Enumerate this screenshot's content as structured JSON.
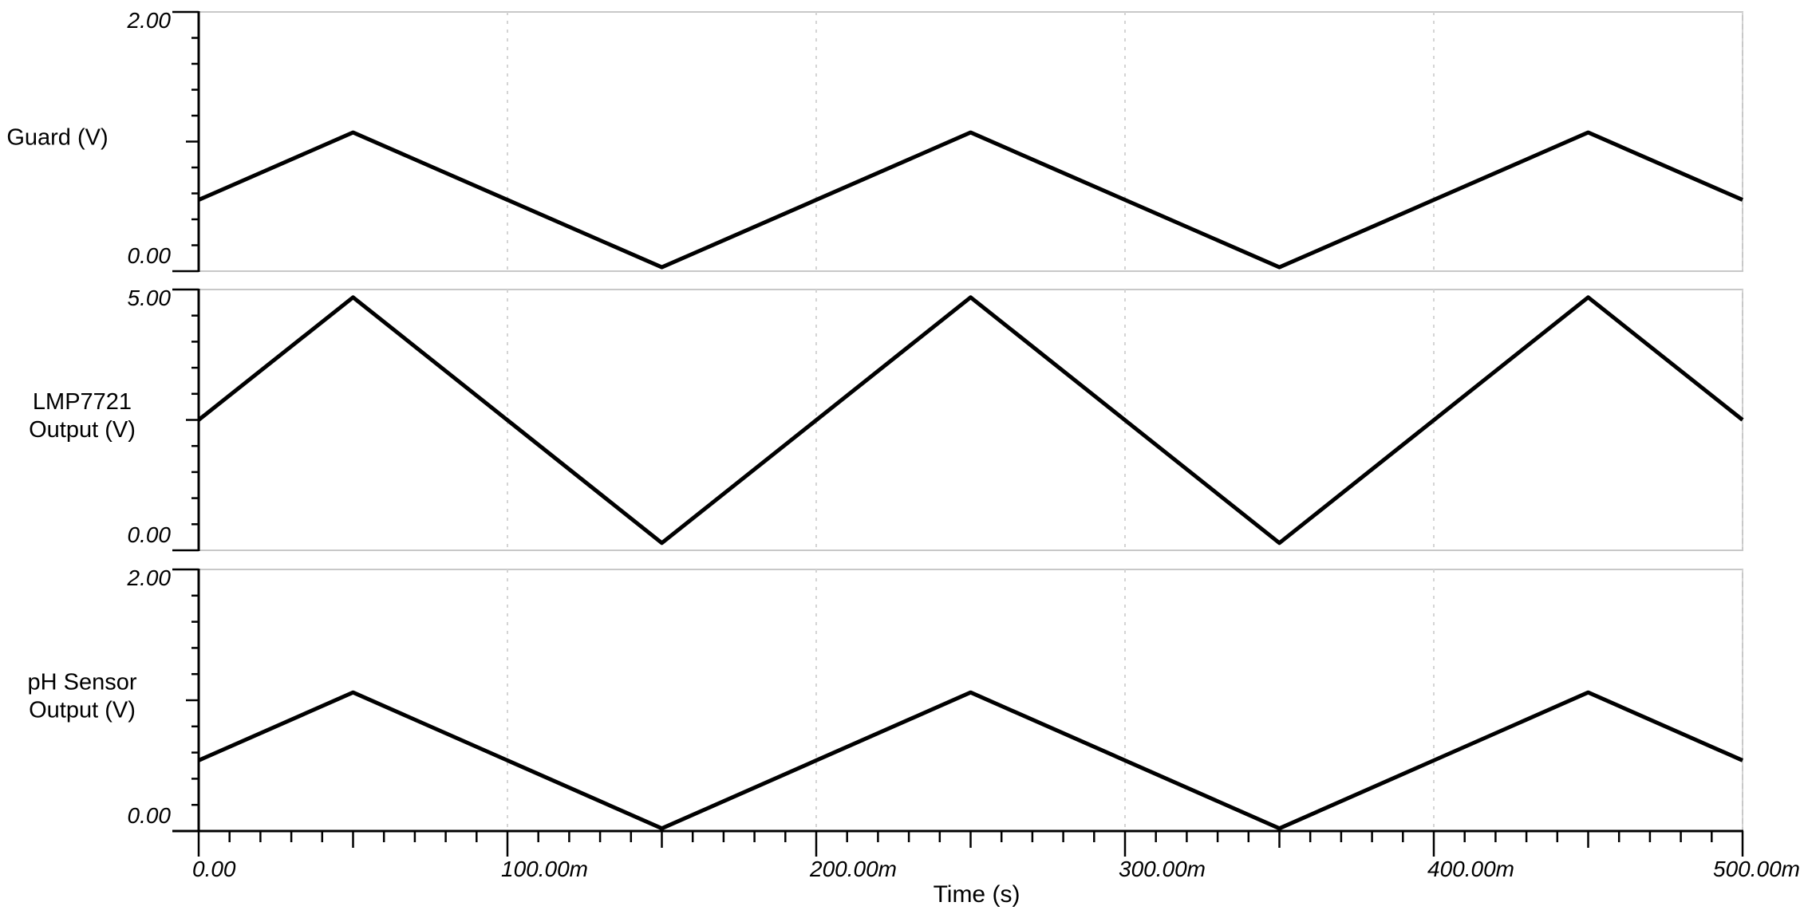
{
  "colors": {
    "waveform": "#000000",
    "axis": "#000000",
    "panel_border": "#c8c8c8",
    "gridline": "#d4d4d4",
    "text": "#000000",
    "background": "#ffffff"
  },
  "axis": {
    "x_label": "Time (s)",
    "xlim_ms": [
      0,
      500
    ],
    "x_minor_tick_step_ms": 10,
    "x_medium_tick_step_ms": 50,
    "x_major_tick_step_ms": 100,
    "x_tick_labels": [
      "0.00",
      "100.00m",
      "200.00m",
      "300.00m",
      "400.00m",
      "500.00m"
    ],
    "x_gridline_ms": [
      100,
      200,
      300,
      400,
      500
    ]
  },
  "chart_data": [
    {
      "type": "line",
      "name": "Guard (V)",
      "label_lines": [
        "Guard (V)"
      ],
      "ylabel_top": "2.00",
      "ylabel_bottom": "0.00",
      "ylim": [
        0,
        2
      ],
      "y_minor_divisions": 10,
      "waveform": "triangle, period 200 ms",
      "x_ms": [
        0,
        50,
        150,
        250,
        350,
        450,
        500
      ],
      "y_v": [
        0.55,
        1.07,
        0.03,
        1.07,
        0.03,
        1.07,
        0.55
      ]
    },
    {
      "type": "line",
      "name": "LMP7721 Output (V)",
      "label_lines": [
        "LMP7721",
        "Output (V)"
      ],
      "ylabel_top": "5.00",
      "ylabel_bottom": "0.00",
      "ylim": [
        0,
        5
      ],
      "y_minor_divisions": 10,
      "waveform": "triangle, period 200 ms",
      "x_ms": [
        0,
        50,
        150,
        250,
        350,
        450,
        500
      ],
      "y_v": [
        2.5,
        4.85,
        0.14,
        4.85,
        0.14,
        4.85,
        2.5
      ]
    },
    {
      "type": "line",
      "name": "pH Sensor Output (V)",
      "label_lines": [
        "pH Sensor",
        "Output (V)"
      ],
      "ylabel_top": "2.00",
      "ylabel_bottom": "0.00",
      "ylim": [
        0,
        2
      ],
      "y_minor_divisions": 10,
      "waveform": "triangle, period 200 ms",
      "x_ms": [
        0,
        50,
        150,
        250,
        350,
        450,
        500
      ],
      "y_v": [
        0.54,
        1.06,
        0.02,
        1.06,
        0.02,
        1.06,
        0.54
      ]
    }
  ]
}
